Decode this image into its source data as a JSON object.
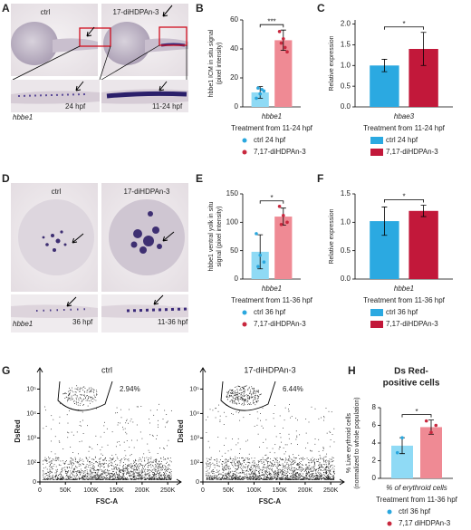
{
  "panels": {
    "A": {
      "letter": "A",
      "left_title": "ctrl",
      "right_title": "17-diHDPAn-3",
      "gene": "hbbe1",
      "left_stage": "24 hpf",
      "right_stage": "11-24 hpf"
    },
    "D": {
      "letter": "D",
      "left_title": "ctrl",
      "right_title": "17-diHDPAn-3",
      "gene": "hbbe1",
      "left_stage": "36 hpf",
      "right_stage": "11-36 hpf"
    }
  },
  "chart_data": [
    {
      "type": "bar",
      "letter": "B",
      "ylabel": [
        "hbbe1 ICM in situ signal",
        "(pixel intensity)"
      ],
      "ylim": [
        0,
        60
      ],
      "yticks": [
        0,
        20,
        40,
        60
      ],
      "categories": [
        "hbbe1"
      ],
      "xlabel": "Treatment from 11-24 hpf",
      "legend_marker": "circle",
      "significance": "***",
      "series": [
        {
          "name": "ctrl 24 hpf",
          "color": "#8fdaf5",
          "point_color": "#2aa7de",
          "values": [
            10
          ],
          "errors": [
            4
          ],
          "points": [
            6,
            9,
            11,
            13,
            12
          ]
        },
        {
          "name": "7,17-diHDPAn-3",
          "color": "#ef8a94",
          "point_color": "#c8283e",
          "values": [
            46
          ],
          "errors": [
            7
          ],
          "points": [
            52,
            47,
            38,
            44,
            41
          ]
        }
      ]
    },
    {
      "type": "bar",
      "letter": "C",
      "ylabel": [
        "Relative expression"
      ],
      "ylim": [
        0,
        2.1
      ],
      "yticks": [
        {
          "value": 0,
          "label": "0.0"
        },
        0.5,
        {
          "value": 1,
          "label": "1.0"
        },
        1.5,
        {
          "value": 2,
          "label": "2.0"
        }
      ],
      "categories": [
        "hbae3"
      ],
      "xlabel": "Treatment from 11-24 hpf",
      "legend_marker": "square",
      "significance": "*",
      "series": [
        {
          "name": "ctrl 24 hpf",
          "color": "#2ba9e1",
          "values": [
            1.0
          ],
          "errors": [
            0.15
          ]
        },
        {
          "name": "7,17-diHDPAn-3",
          "color": "#c2183a",
          "values": [
            1.4
          ],
          "errors": [
            0.4
          ]
        }
      ]
    },
    {
      "type": "bar",
      "letter": "E",
      "ylabel": [
        "hbbe1 ventral yolk in situ",
        "signal (pixel intensity)"
      ],
      "ylim": [
        0,
        150
      ],
      "yticks": [
        0,
        50,
        100,
        150
      ],
      "categories": [
        "hbbe1"
      ],
      "xlabel": "Treatment from 11-36 hpf",
      "legend_marker": "circle",
      "significance": "*",
      "series": [
        {
          "name": "ctrl 36 hpf",
          "color": "#8fdaf5",
          "point_color": "#2aa7de",
          "values": [
            48
          ],
          "errors": [
            30
          ],
          "points": [
            80,
            42,
            30,
            22
          ]
        },
        {
          "name": "7,17-diHDPAn-3",
          "color": "#ef8a94",
          "point_color": "#c8283e",
          "values": [
            110
          ],
          "errors": [
            15
          ],
          "points": [
            128,
            112,
            100,
            96
          ]
        }
      ]
    },
    {
      "type": "bar",
      "letter": "F",
      "ylabel": [
        "Relative expression"
      ],
      "ylim": [
        0,
        1.5
      ],
      "yticks": [
        {
          "value": 0,
          "label": "0.0"
        },
        0.5,
        {
          "value": 1,
          "label": "1.0"
        },
        1.5
      ],
      "categories": [
        "hbbe1"
      ],
      "xlabel": "Treatment from 11-36 hpf",
      "legend_marker": "square",
      "significance": "*",
      "series": [
        {
          "name": "ctrl 36 hpf",
          "color": "#2ba9e1",
          "values": [
            1.02
          ],
          "errors": [
            0.25
          ]
        },
        {
          "name": "7,17-diHDPAn-3",
          "color": "#c2183a",
          "values": [
            1.2
          ],
          "errors": [
            0.1
          ]
        }
      ]
    },
    {
      "type": "bar",
      "letter": "H",
      "title_lines": [
        "Ds Red-",
        "positive cells"
      ],
      "ylabel": [
        "% Live erythroid cells",
        "(normalized to whole population)"
      ],
      "ylim": [
        0,
        8
      ],
      "yticks": [
        0,
        2,
        4,
        6,
        8
      ],
      "categories": [
        "% of erythroid cells"
      ],
      "xlabel": "Treatment from 11-36 hpf",
      "legend_marker": "circle",
      "significance": "*",
      "series": [
        {
          "name": "ctrl 36 hpf",
          "color": "#8fdaf5",
          "point_color": "#2aa7de",
          "values": [
            3.7
          ],
          "errors": [
            0.9
          ],
          "points": [
            2.9,
            4.6
          ]
        },
        {
          "name": "7,17 diHDPAn-3",
          "color": "#ef8a94",
          "point_color": "#c8283e",
          "values": [
            5.8
          ],
          "errors": [
            0.8
          ],
          "points": [
            6.5,
            5.2,
            6.0
          ]
        }
      ]
    }
  ],
  "flow": {
    "letter": "G",
    "ylabel": "DsRed",
    "xlabel": "FSC-A",
    "xlim": [
      0,
      262144
    ],
    "xticks": [
      0,
      {
        "value": 50000,
        "label": "50K"
      },
      {
        "value": 100000,
        "label": "100K"
      },
      {
        "value": 150000,
        "label": "150K"
      },
      {
        "value": 200000,
        "label": "200K"
      },
      {
        "value": 250000,
        "label": "250K"
      }
    ],
    "yticks": [
      0,
      {
        "value": 100,
        "label": "10²"
      },
      {
        "value": 1000,
        "label": "10³"
      },
      {
        "value": 10000,
        "label": "10⁴"
      },
      {
        "value": 100000,
        "label": "10⁵"
      }
    ],
    "plots": [
      {
        "title": "ctrl",
        "gate_percent": "2.94%"
      },
      {
        "title": "17-diHDPAn-3",
        "gate_percent": "6.44%"
      }
    ]
  }
}
